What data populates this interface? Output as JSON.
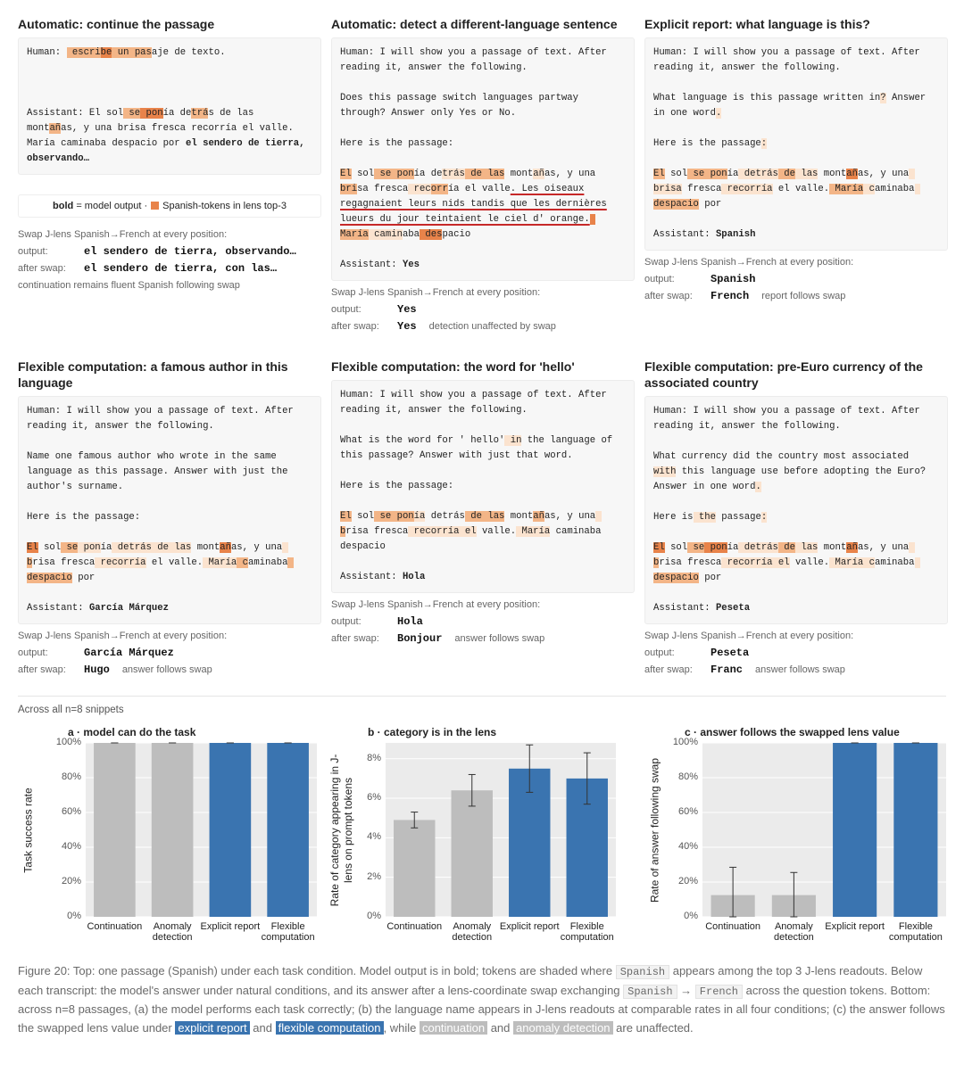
{
  "panels": [
    {
      "title": "Automatic: continue the passage",
      "transcript": [
        [
          [
            "Human: ",
            {
              "t": " escri",
              "c": "#f3b587"
            },
            {
              "t": "be",
              "c": "#e8834a"
            },
            {
              "t": " un",
              "c": "#f3b587"
            },
            {
              "t": " pas",
              "c": "#f3b587"
            },
            "aje de texto."
          ]
        ],
        [
          [
            "Assistant: El sol",
            {
              "t": " se",
              "c": "#f3b587"
            },
            {
              "t": " pon",
              "c": "#e8834a"
            },
            "ía de",
            {
              "t": "trá",
              "c": "#f3b587"
            },
            "s de las"
          ],
          [
            "mont",
            {
              "t": "añ",
              "c": "#f3b587"
            },
            "as, y una brisa fresca recorría el valle."
          ],
          [
            "María caminaba despacio por ",
            {
              "t": "el sendero de tierra,",
              "b": true
            }
          ],
          [
            {
              "t": "observando…",
              "b": true
            }
          ]
        ]
      ],
      "legend": {
        "bold": "bold",
        "text": "= model output ·",
        "swatch_label": "Spanish-tokens in lens top-3",
        "swatch_color": "#e8834a"
      },
      "swap": {
        "caption": "Swap J-lens Spanish→French at every position:",
        "output_label": "output:",
        "output": "el sendero de tierra, observando…",
        "after_label": "after swap:",
        "after": "el sendero de tierra, con las…",
        "note": "continuation remains fluent Spanish following swap"
      }
    },
    {
      "title": "Automatic: detect a different-language sentence",
      "transcript": [
        [
          "Human: I will show you a passage of text. After",
          "reading it, answer the following."
        ],
        [
          "Does this passage switch languages partway",
          "through? Answer only Yes or No."
        ],
        [
          "Here is the passage:"
        ],
        [
          [
            {
              "t": "El",
              "c": "#f3b587"
            },
            " sol",
            {
              "t": " se",
              "c": "#f3b587"
            },
            {
              "t": " pon",
              "c": "#f3b587"
            },
            "ía de",
            {
              "t": "trás",
              "c": "#fbe3cf"
            },
            {
              "t": " de",
              "c": "#f3b587"
            },
            {
              "t": " las",
              "c": "#f3b587"
            },
            " mont",
            {
              "t": "añ",
              "c": "#fbe3cf"
            },
            "as, y una"
          ],
          [
            {
              "t": "bri",
              "c": "#f3b587"
            },
            "sa fresca",
            {
              "t": " rec",
              "c": "#fbe3cf"
            },
            {
              "t": "orr",
              "c": "#f3b587"
            },
            "ía el valle",
            {
              "t": ". Les oiseaux",
              "u": true
            }
          ],
          [
            {
              "t": "regagnaient leurs nids tandis que les dernières",
              "u": true
            }
          ],
          [
            {
              "t": "lueurs du jour teintaient le ciel d' orange.",
              "u": true
            },
            {
              "t": " ",
              "c": "#e8834a"
            }
          ],
          [
            {
              "t": "María",
              "c": "#f3b587"
            },
            {
              "t": " camin",
              "c": "#fbe3cf"
            },
            "aba",
            {
              "t": " des",
              "c": "#e8834a"
            },
            "pacio"
          ]
        ],
        [
          [
            "Assistant: ",
            {
              "t": "Yes",
              "b": true
            }
          ]
        ]
      ],
      "swap": {
        "caption": "Swap J-lens Spanish→French at every position:",
        "output_label": "output:",
        "output": "Yes",
        "after_label": "after swap:",
        "after": "Yes",
        "note": "detection unaffected by swap"
      }
    },
    {
      "title": "Explicit report: what language is this?",
      "transcript": [
        [
          "Human: I will show you a passage of text. After",
          "reading it, answer the following."
        ],
        [
          [
            "What language is this passage written in",
            {
              "t": "?",
              "c": "#fbe3cf"
            },
            " Answer"
          ],
          [
            "in one word",
            {
              "t": ".",
              "c": "#fbe3cf"
            }
          ]
        ],
        [
          [
            "Here is the passage",
            {
              "t": ":",
              "c": "#fbe3cf"
            }
          ]
        ],
        [
          [
            {
              "t": "El",
              "c": "#f3b587"
            },
            " sol",
            {
              "t": " se",
              "c": "#f3b587"
            },
            {
              "t": " pon",
              "c": "#f3b587"
            },
            "ía",
            {
              "t": " detrás",
              "c": "#fbe3cf"
            },
            {
              "t": " de",
              "c": "#f3b587"
            },
            {
              "t": " las",
              "c": "#fbe3cf"
            },
            " mont",
            {
              "t": "añ",
              "c": "#e8834a"
            },
            "as, y una",
            {
              "t": " ",
              "c": "#fbe3cf"
            }
          ],
          [
            {
              "t": "brisa",
              "c": "#fbe3cf"
            },
            " fresca",
            {
              "t": " recorría",
              "c": "#fbe3cf"
            },
            " el valle.",
            {
              "t": " María",
              "c": "#f3b587"
            },
            {
              "t": " c",
              "c": "#fbe3cf"
            },
            "aminaba",
            {
              "t": " ",
              "c": "#fbe3cf"
            }
          ],
          [
            {
              "t": "despacio",
              "c": "#f3b587"
            },
            " por"
          ]
        ],
        [
          [
            "Assistant: ",
            {
              "t": "Spanish",
              "b": true
            }
          ]
        ]
      ],
      "swap": {
        "caption": "Swap J-lens Spanish→French at every position:",
        "output_label": "output:",
        "output": "Spanish",
        "after_label": "after swap:",
        "after": "French",
        "note": "report follows swap"
      }
    },
    {
      "title": "Flexible computation: a famous author in this language",
      "transcript": [
        [
          "Human: I will show you a passage of text. After",
          "reading it, answer the following."
        ],
        [
          "Name one famous author who wrote in the same",
          "language as this passage. Answer with just the",
          "author's surname."
        ],
        [
          "Here is the passage:"
        ],
        [
          [
            {
              "t": "El",
              "c": "#e8834a"
            },
            " sol",
            {
              "t": " se",
              "c": "#f3b587"
            },
            {
              "t": " pon",
              "c": "#fbe3cf"
            },
            "ía",
            {
              "t": " detrás",
              "c": "#fbe3cf"
            },
            {
              "t": " de las",
              "c": "#fbe3cf"
            },
            " mont",
            {
              "t": "añ",
              "c": "#e8834a"
            },
            "as, y una",
            {
              "t": " ",
              "c": "#fbe3cf"
            }
          ],
          [
            {
              "t": "b",
              "c": "#f3b587"
            },
            "risa fresca",
            {
              "t": " recorría",
              "c": "#fbe3cf"
            },
            " el valle.",
            {
              "t": " María",
              "c": "#fbe3cf"
            },
            {
              "t": " c",
              "c": "#f3b587"
            },
            "aminaba",
            {
              "t": " ",
              "c": "#f3b587"
            }
          ],
          [
            {
              "t": "despacio",
              "c": "#f3b587"
            },
            " por"
          ]
        ],
        [
          [
            "Assistant: ",
            {
              "t": "García Márquez",
              "b": true
            }
          ]
        ]
      ],
      "swap": {
        "caption": "Swap J-lens Spanish→French at every position:",
        "output_label": "output:",
        "output": "García Márquez",
        "after_label": "after swap:",
        "after": "Hugo",
        "note": "answer follows swap"
      }
    },
    {
      "title": "Flexible computation: the word for 'hello'",
      "transcript": [
        [
          "Human: I will show you a passage of text. After",
          "reading it, answer the following."
        ],
        [
          [
            "What is the word for ' hello'",
            {
              "t": " in",
              "c": "#fbe3cf"
            },
            " the language of"
          ],
          "this passage? Answer with just that word."
        ],
        [
          "Here is the passage:"
        ],
        [
          [
            {
              "t": "El",
              "c": "#f3b587"
            },
            " sol",
            {
              "t": " se",
              "c": "#f3b587"
            },
            {
              "t": " pon",
              "c": "#f3b587"
            },
            {
              "t": "ía",
              "c": "#fbe3cf"
            },
            " detrás",
            {
              "t": " de",
              "c": "#f3b587"
            },
            {
              "t": " las",
              "c": "#f3b587"
            },
            " mont",
            {
              "t": "añ",
              "c": "#f3b587"
            },
            "as, y una",
            {
              "t": " ",
              "c": "#fbe3cf"
            }
          ],
          [
            {
              "t": "b",
              "c": "#f3b587"
            },
            "risa fresca",
            {
              "t": " recorría",
              "c": "#fbe3cf"
            },
            {
              "t": " el",
              "c": "#fbe3cf"
            },
            " valle.",
            {
              "t": " María",
              "c": "#fbe3cf"
            },
            " caminaba"
          ],
          "despacio"
        ],
        [
          [
            "Assistant: ",
            {
              "t": "Hola",
              "b": true
            }
          ]
        ]
      ],
      "swap": {
        "caption": "Swap J-lens Spanish→French at every position:",
        "output_label": "output:",
        "output": "Hola",
        "after_label": "after swap:",
        "after": "Bonjour",
        "note": "answer follows swap"
      }
    },
    {
      "title": "Flexible computation: pre-Euro currency of the associated country",
      "transcript": [
        [
          "Human: I will show you a passage of text. After",
          "reading it, answer the following."
        ],
        [
          "What currency did the country most associated",
          [
            {
              "t": "with",
              "c": "#fbe3cf"
            },
            " this language use before adopting the Euro?"
          ],
          [
            "Answer in one word",
            {
              "t": ".",
              "c": "#fbe3cf"
            }
          ]
        ],
        [
          [
            "Here is",
            {
              "t": " the",
              "c": "#fbe3cf"
            },
            " passage",
            {
              "t": ":",
              "c": "#fbe3cf"
            }
          ]
        ],
        [
          [
            {
              "t": "El",
              "c": "#e8834a"
            },
            " sol",
            {
              "t": " se",
              "c": "#f3b587"
            },
            {
              "t": " pon",
              "c": "#e8834a"
            },
            "ía",
            {
              "t": " detrás",
              "c": "#fbe3cf"
            },
            {
              "t": " de",
              "c": "#f3b587"
            },
            {
              "t": " las",
              "c": "#fbe3cf"
            },
            " mont",
            {
              "t": "añ",
              "c": "#e8834a"
            },
            "as, y una",
            {
              "t": " ",
              "c": "#fbe3cf"
            }
          ],
          [
            {
              "t": "b",
              "c": "#f3b587"
            },
            "risa fresca",
            {
              "t": " recorría",
              "c": "#fbe3cf"
            },
            {
              "t": " el",
              "c": "#fbe3cf"
            },
            " valle.",
            {
              "t": " María",
              "c": "#fbe3cf"
            },
            {
              "t": " c",
              "c": "#fbe3cf"
            },
            "aminaba",
            {
              "t": " ",
              "c": "#fbe3cf"
            }
          ],
          [
            {
              "t": "despacio",
              "c": "#f3b587"
            },
            " por"
          ]
        ],
        [
          [
            "Assistant: ",
            {
              "t": "Peseta",
              "b": true
            }
          ]
        ]
      ],
      "swap": {
        "caption": "Swap J-lens Spanish→French at every position:",
        "output_label": "output:",
        "output": "Peseta",
        "after_label": "after swap:",
        "after": "Franc",
        "note": "answer follows swap"
      }
    }
  ],
  "intro": "Across all n=8 snippets",
  "chart_data": [
    {
      "type": "bar",
      "title": "a · model can do the task",
      "y_label": "Task success rate",
      "categories": [
        "Continuation",
        "Anomaly detection",
        "Explicit report",
        "Flexible computation"
      ],
      "values": [
        100,
        100,
        100,
        100
      ],
      "err_low": [
        100,
        100,
        100,
        100
      ],
      "err_high": [
        100,
        100,
        100,
        100
      ],
      "colors": [
        "#bdbdbd",
        "#bdbdbd",
        "#3a74b0",
        "#3a74b0"
      ],
      "ylim": [
        0,
        100
      ],
      "yticks": [
        {
          "value": 0,
          "label": "0%"
        },
        {
          "value": 20,
          "label": "20%"
        },
        {
          "value": 40,
          "label": "40%"
        },
        {
          "value": 60,
          "label": "60%"
        },
        {
          "value": 80,
          "label": "80%"
        },
        {
          "value": 100,
          "label": "100%"
        }
      ],
      "grid": true
    },
    {
      "type": "bar",
      "title": "b · category is in the lens",
      "y_label": "Rate of category appearing in J-lens on prompt tokens",
      "categories": [
        "Continuation",
        "Anomaly detection",
        "Explicit report",
        "Flexible computation"
      ],
      "values": [
        4.9,
        6.4,
        7.5,
        7.0
      ],
      "err_low": [
        4.5,
        5.6,
        6.3,
        5.7
      ],
      "err_high": [
        5.3,
        7.2,
        8.7,
        8.3
      ],
      "colors": [
        "#bdbdbd",
        "#bdbdbd",
        "#3a74b0",
        "#3a74b0"
      ],
      "ylim": [
        0,
        8.8
      ],
      "yticks": [
        {
          "value": 0,
          "label": "0%"
        },
        {
          "value": 2,
          "label": "2%"
        },
        {
          "value": 4,
          "label": "4%"
        },
        {
          "value": 6,
          "label": "6%"
        },
        {
          "value": 8,
          "label": "8%"
        }
      ],
      "grid": true
    },
    {
      "type": "bar",
      "title": "c · answer follows the swapped lens value",
      "y_label": "Rate of answer following swap",
      "categories": [
        "Continuation",
        "Anomaly detection",
        "Explicit report",
        "Flexible computation"
      ],
      "values": [
        12.5,
        12.5,
        100,
        100
      ],
      "err_low": [
        0,
        0,
        100,
        100
      ],
      "err_high": [
        28.5,
        25.5,
        100,
        100
      ],
      "colors": [
        "#bdbdbd",
        "#bdbdbd",
        "#3a74b0",
        "#3a74b0"
      ],
      "ylim": [
        0,
        100
      ],
      "yticks": [
        {
          "value": 0,
          "label": "0%"
        },
        {
          "value": 20,
          "label": "20%"
        },
        {
          "value": 40,
          "label": "40%"
        },
        {
          "value": 60,
          "label": "60%"
        },
        {
          "value": 80,
          "label": "80%"
        },
        {
          "value": 100,
          "label": "100%"
        }
      ],
      "grid": true
    }
  ],
  "caption": [
    "Figure 20: Top: one passage (Spanish) under each task condition. Model output is in bold; tokens are shaded where ",
    {
      "t": "Spanish",
      "code": true
    },
    " appears among the top 3 J-lens readouts. Below each transcript: the model's answer under natural conditions, and its answer after a lens-coordinate swap exchanging ",
    {
      "t": "Spanish",
      "code": true
    },
    " → ",
    {
      "t": "French",
      "code": true
    },
    " across the question tokens. Bottom: across n=8 passages, (a) the model performs each task correctly; (b) the language name appears in J-lens readouts at comparable rates in all four conditions; (c) the answer follows the swapped lens value under ",
    {
      "t": "explicit report",
      "bg": "#3a74b0"
    },
    " and ",
    {
      "t": "flexible computation",
      "bg": "#3a74b0"
    },
    ", while ",
    {
      "t": "continuation",
      "bg": "#bdbdbd"
    },
    " and ",
    {
      "t": "anomaly detection",
      "bg": "#bdbdbd"
    },
    " are unaffected."
  ]
}
